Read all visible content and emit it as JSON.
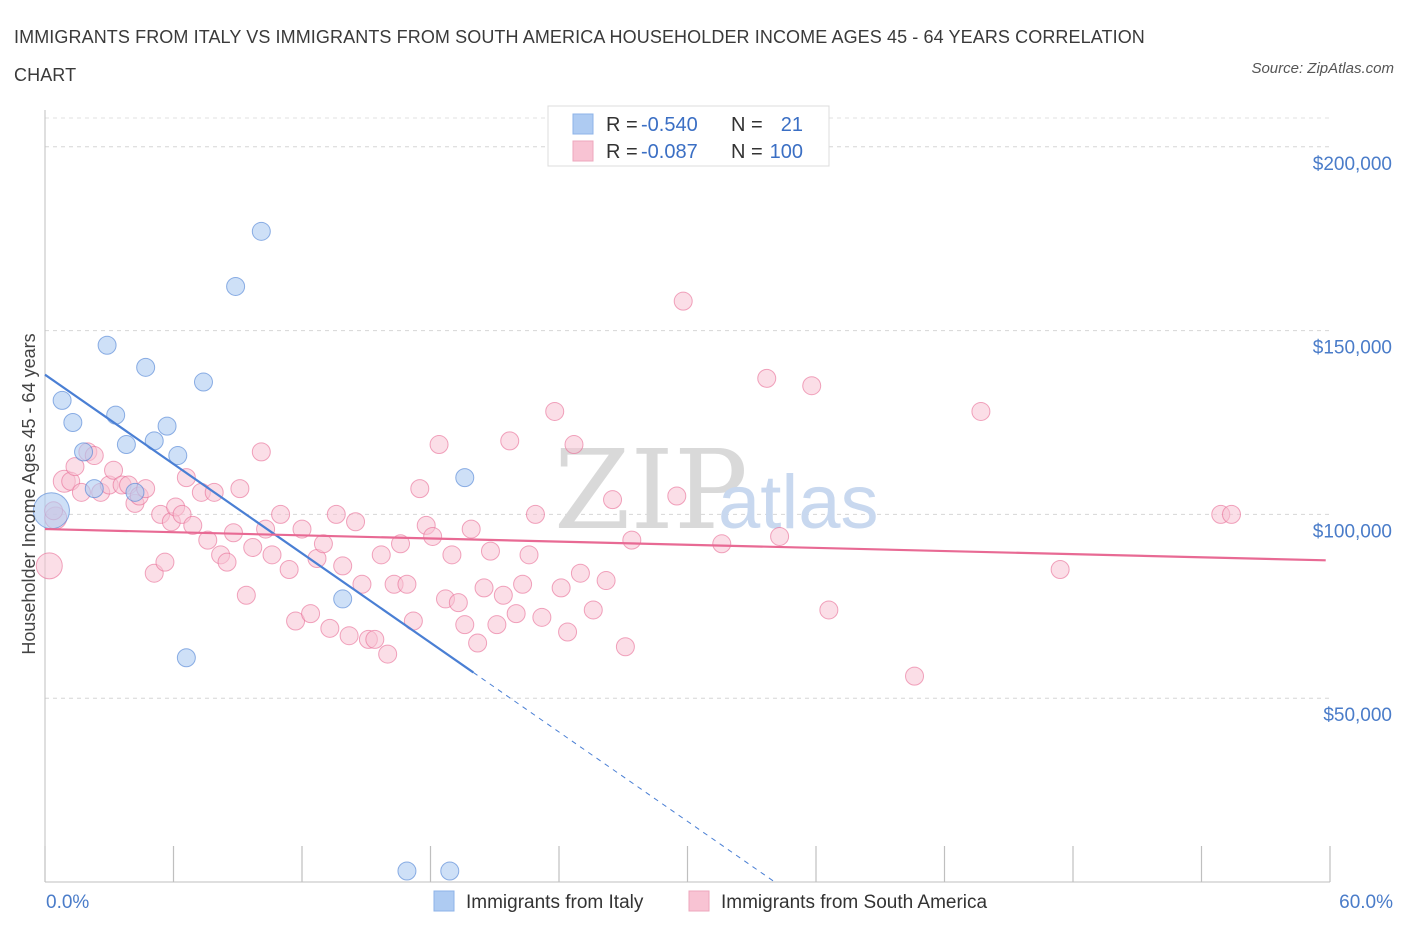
{
  "title": "IMMIGRANTS FROM ITALY VS IMMIGRANTS FROM SOUTH AMERICA HOUSEHOLDER INCOME AGES 45 - 64 YEARS CORRELATION CHART",
  "source": "Source: ZipAtlas.com",
  "watermark": {
    "zip": "ZIP",
    "atlas": "atlas"
  },
  "legend": {
    "rows": [
      {
        "r_label": "R =",
        "r_value": "-0.540",
        "n_label": "N =",
        "n_value": "21",
        "color": "#aecbf2"
      },
      {
        "r_label": "R =",
        "r_value": "-0.087",
        "n_label": "N =",
        "n_value": "100",
        "color": "#f8c3d3"
      }
    ]
  },
  "bottom_legend": [
    {
      "label": "Immigrants from Italy",
      "color": "#aecbf2"
    },
    {
      "label": "Immigrants from South America",
      "color": "#f8c3d3"
    }
  ],
  "chart_data": {
    "type": "scatter",
    "xlabel": "",
    "ylabel": "Householder Income Ages 45 - 64 years",
    "xlim": [
      0,
      60
    ],
    "ylim": [
      0,
      210000
    ],
    "x_tick_labels": [
      "0.0%",
      "60.0%"
    ],
    "y_ticks": [
      50000,
      100000,
      150000,
      200000
    ],
    "y_tick_labels": [
      "$50,000",
      "$100,000",
      "$150,000",
      "$200,000"
    ],
    "grid": true,
    "colors": {
      "italy": "#4a7fd4",
      "italy_fill": "#aecbf2",
      "sa": "#e86a94",
      "sa_fill": "#f8c3d3"
    },
    "series": [
      {
        "name": "Immigrants from Italy",
        "trend": {
          "x0": 0,
          "y0": 138000,
          "x1": 20,
          "y1": 57000,
          "dash_to_x": 34
        },
        "points": [
          [
            0.3,
            101000,
            18
          ],
          [
            0.8,
            131000,
            9
          ],
          [
            1.3,
            125000,
            9
          ],
          [
            1.8,
            117000,
            9
          ],
          [
            2.3,
            107000,
            9
          ],
          [
            2.9,
            146000,
            9
          ],
          [
            3.3,
            127000,
            9
          ],
          [
            3.8,
            119000,
            9
          ],
          [
            4.2,
            106000,
            9
          ],
          [
            4.7,
            140000,
            9
          ],
          [
            5.1,
            120000,
            9
          ],
          [
            5.7,
            124000,
            9
          ],
          [
            6.2,
            116000,
            9
          ],
          [
            6.6,
            61000,
            9
          ],
          [
            7.4,
            136000,
            9
          ],
          [
            8.9,
            162000,
            9
          ],
          [
            10.1,
            177000,
            9
          ],
          [
            13.9,
            77000,
            9
          ],
          [
            19.6,
            110000,
            9
          ],
          [
            16.9,
            3000,
            9
          ],
          [
            18.9,
            3000,
            9
          ]
        ]
      },
      {
        "name": "Immigrants from South America",
        "trend": {
          "x0": 0,
          "y0": 96000,
          "x1": 59.8,
          "y1": 87500
        },
        "points": [
          [
            0.2,
            86000,
            13
          ],
          [
            0.5,
            99000,
            11
          ],
          [
            0.9,
            109000,
            11
          ],
          [
            1.2,
            109000,
            9
          ],
          [
            1.4,
            113000,
            9
          ],
          [
            1.7,
            106000,
            9
          ],
          [
            2.0,
            117000,
            9
          ],
          [
            2.3,
            116000,
            9
          ],
          [
            2.6,
            106000,
            9
          ],
          [
            3.0,
            108000,
            9
          ],
          [
            3.2,
            112000,
            9
          ],
          [
            3.6,
            108000,
            9
          ],
          [
            3.9,
            108000,
            9
          ],
          [
            4.2,
            103000,
            9
          ],
          [
            4.4,
            105000,
            9
          ],
          [
            4.7,
            107000,
            9
          ],
          [
            5.1,
            84000,
            9
          ],
          [
            5.4,
            100000,
            9
          ],
          [
            5.6,
            87000,
            9
          ],
          [
            5.9,
            98000,
            9
          ],
          [
            6.1,
            102000,
            9
          ],
          [
            6.4,
            100000,
            9
          ],
          [
            6.6,
            110000,
            9
          ],
          [
            6.9,
            97000,
            9
          ],
          [
            7.3,
            106000,
            9
          ],
          [
            7.6,
            93000,
            9
          ],
          [
            7.9,
            106000,
            9
          ],
          [
            8.2,
            89000,
            9
          ],
          [
            8.5,
            87000,
            9
          ],
          [
            8.8,
            95000,
            9
          ],
          [
            9.1,
            107000,
            9
          ],
          [
            9.4,
            78000,
            9
          ],
          [
            9.7,
            91000,
            9
          ],
          [
            10.1,
            117000,
            9
          ],
          [
            10.3,
            96000,
            9
          ],
          [
            10.6,
            89000,
            9
          ],
          [
            11.0,
            100000,
            9
          ],
          [
            11.4,
            85000,
            9
          ],
          [
            11.7,
            71000,
            9
          ],
          [
            12.0,
            96000,
            9
          ],
          [
            12.4,
            73000,
            9
          ],
          [
            12.7,
            88000,
            9
          ],
          [
            13.0,
            92000,
            9
          ],
          [
            13.3,
            69000,
            9
          ],
          [
            13.6,
            100000,
            9
          ],
          [
            13.9,
            86000,
            9
          ],
          [
            14.2,
            67000,
            9
          ],
          [
            14.5,
            98000,
            9
          ],
          [
            14.8,
            81000,
            9
          ],
          [
            15.1,
            66000,
            9
          ],
          [
            15.4,
            66000,
            9
          ],
          [
            15.7,
            89000,
            9
          ],
          [
            16.0,
            62000,
            9
          ],
          [
            16.3,
            81000,
            9
          ],
          [
            16.6,
            92000,
            9
          ],
          [
            16.9,
            81000,
            9
          ],
          [
            17.2,
            71000,
            9
          ],
          [
            17.5,
            107000,
            9
          ],
          [
            17.8,
            97000,
            9
          ],
          [
            18.1,
            94000,
            9
          ],
          [
            18.4,
            119000,
            9
          ],
          [
            18.7,
            77000,
            9
          ],
          [
            19.0,
            89000,
            9
          ],
          [
            19.3,
            76000,
            9
          ],
          [
            19.6,
            70000,
            9
          ],
          [
            19.9,
            96000,
            9
          ],
          [
            20.2,
            65000,
            9
          ],
          [
            20.5,
            80000,
            9
          ],
          [
            20.8,
            90000,
            9
          ],
          [
            21.1,
            70000,
            9
          ],
          [
            21.4,
            78000,
            9
          ],
          [
            21.7,
            120000,
            9
          ],
          [
            22.0,
            73000,
            9
          ],
          [
            22.3,
            81000,
            9
          ],
          [
            22.6,
            89000,
            9
          ],
          [
            22.9,
            100000,
            9
          ],
          [
            23.2,
            72000,
            9
          ],
          [
            23.8,
            128000,
            9
          ],
          [
            24.1,
            80000,
            9
          ],
          [
            24.4,
            68000,
            9
          ],
          [
            24.7,
            119000,
            9
          ],
          [
            25.0,
            84000,
            9
          ],
          [
            25.6,
            74000,
            9
          ],
          [
            26.2,
            82000,
            9
          ],
          [
            26.5,
            104000,
            9
          ],
          [
            27.1,
            64000,
            9
          ],
          [
            27.4,
            93000,
            9
          ],
          [
            29.5,
            105000,
            9
          ],
          [
            29.8,
            158000,
            9
          ],
          [
            31.6,
            92000,
            9
          ],
          [
            33.7,
            137000,
            9
          ],
          [
            34.3,
            94000,
            9
          ],
          [
            35.8,
            135000,
            9
          ],
          [
            36.6,
            74000,
            9
          ],
          [
            40.6,
            56000,
            9
          ],
          [
            43.7,
            128000,
            9
          ],
          [
            47.4,
            85000,
            9
          ],
          [
            54.9,
            100000,
            9
          ],
          [
            55.4,
            100000,
            9
          ],
          [
            0.4,
            101000,
            9
          ]
        ]
      }
    ]
  }
}
